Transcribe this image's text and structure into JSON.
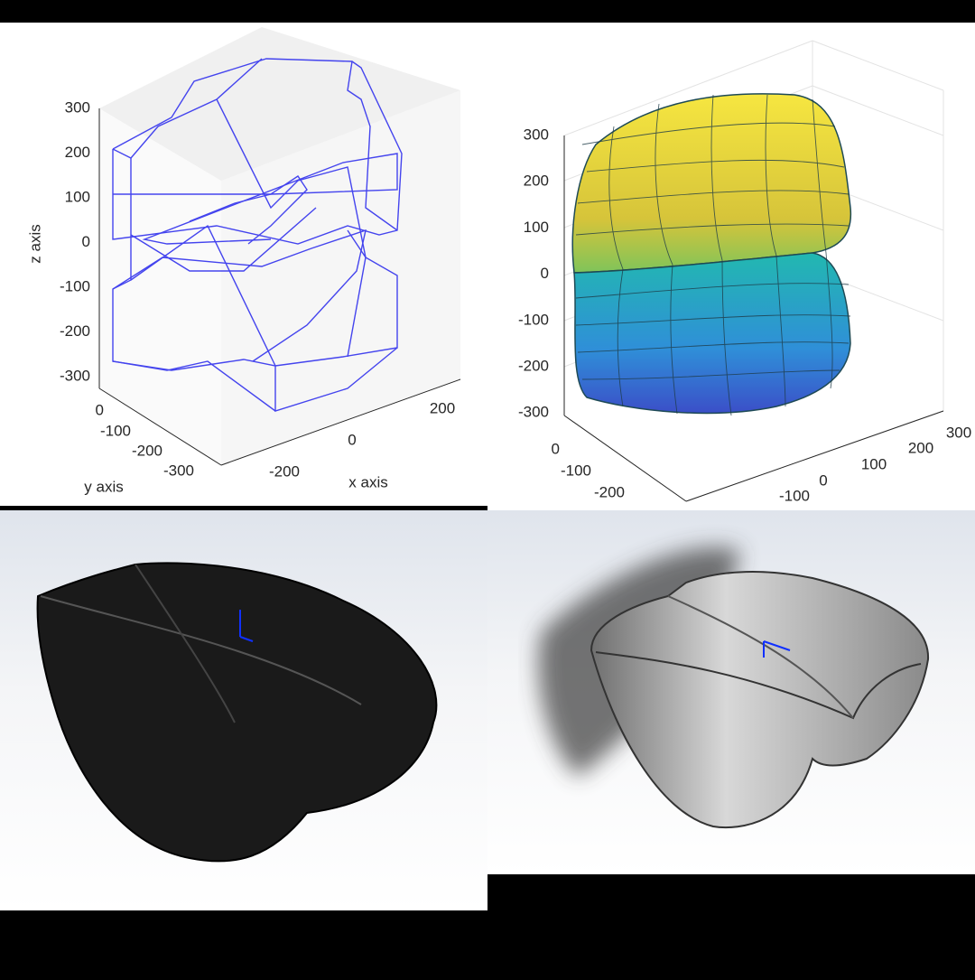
{
  "panels": [
    {
      "zlabel": "z axis",
      "ylabel": "y axis",
      "xlabel": "x axis",
      "zticks": [
        300,
        200,
        100,
        0,
        -100,
        -200,
        -300
      ],
      "yticks": [
        0,
        -100,
        -200,
        -300
      ],
      "xticks": [
        -200,
        0,
        200
      ]
    },
    {
      "zticks": [
        300,
        200,
        100,
        0,
        -100,
        -200,
        -300
      ],
      "yticks": [
        0,
        -100,
        -200
      ],
      "xticks": [
        -100,
        0,
        100,
        200,
        300
      ]
    }
  ]
}
